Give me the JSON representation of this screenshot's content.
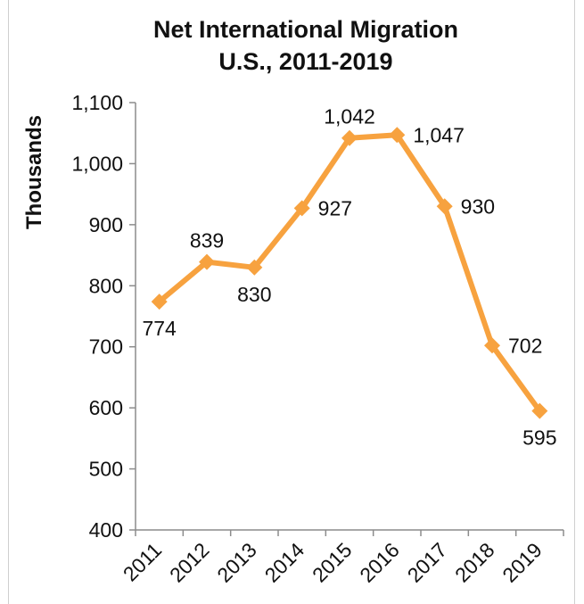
{
  "chart_data": {
    "type": "line",
    "title": "Net International Migration",
    "subtitle": "U.S., 2011-2019",
    "ylabel": "Thousands",
    "xlabel": "",
    "ylim": [
      400,
      1100
    ],
    "ytick_values": [
      400,
      500,
      600,
      700,
      800,
      900,
      1000,
      1100
    ],
    "ytick_labels": [
      "400",
      "500",
      "600",
      "700",
      "800",
      "900",
      "1,000",
      "1,100"
    ],
    "categories": [
      "2011",
      "2012",
      "2013",
      "2014",
      "2015",
      "2016",
      "2017",
      "2018",
      "2019"
    ],
    "series": [
      {
        "values": [
          774,
          839,
          830,
          927,
          1042,
          1047,
          930,
          702,
          595
        ],
        "labels": [
          "774",
          "839",
          "830",
          "927",
          "1,042",
          "1,047",
          "930",
          "702",
          "595"
        ],
        "color": "#F7A23F",
        "marker": "diamond"
      }
    ],
    "grid": false,
    "legend": "none"
  }
}
